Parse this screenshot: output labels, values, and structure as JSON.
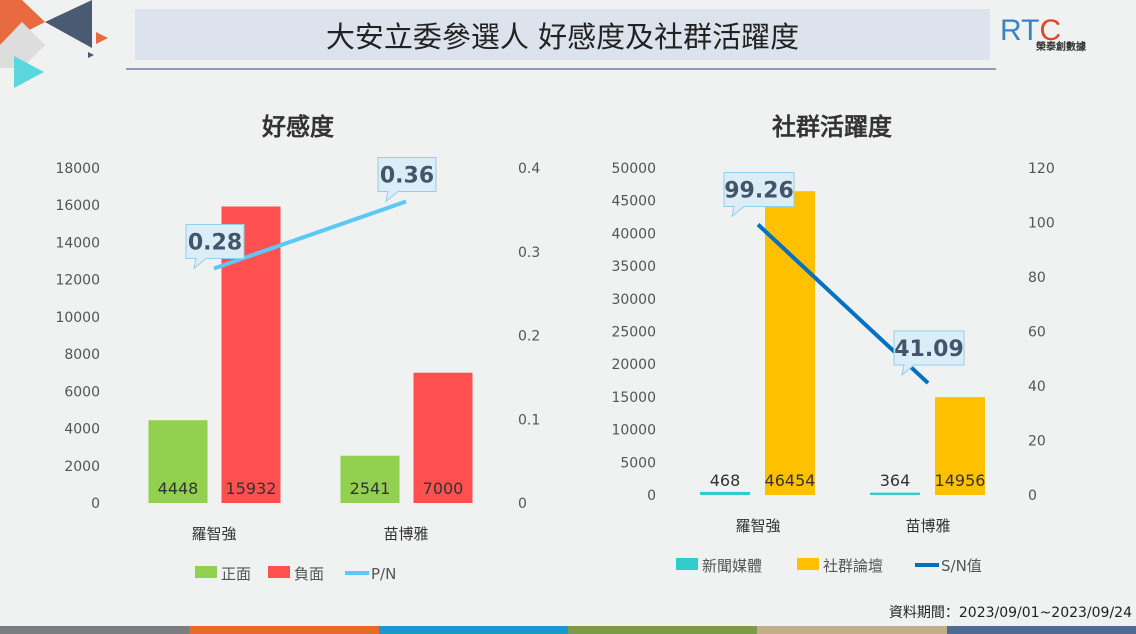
{
  "header": {
    "title": "大安立委參選人  好感度及社群活躍度",
    "logo_text": "RTC",
    "logo_sub": "榮泰創數據"
  },
  "footer": {
    "period": "資料期間：2023/09/01~2023/09/24"
  },
  "colors": {
    "bottom_bar": [
      "#7b7e80",
      "#e86a2a",
      "#1b97cf",
      "#7c9a48",
      "#c3ae8c",
      "#4e6b95"
    ]
  },
  "chart_data": [
    {
      "type": "bar",
      "title": "好感度",
      "categories": [
        "羅智強",
        "苗博雅"
      ],
      "series": [
        {
          "name": "正面",
          "type": "bar",
          "color": "#92d050",
          "values": [
            4448,
            2541
          ]
        },
        {
          "name": "負面",
          "type": "bar",
          "color": "#ff5050",
          "values": [
            15932,
            7000
          ]
        },
        {
          "name": "P/N",
          "type": "line",
          "axis": "right",
          "color": "#5bc8f5",
          "values": [
            0.28,
            0.36
          ]
        }
      ],
      "ylim": [
        0,
        18000
      ],
      "yticks": [
        0,
        2000,
        4000,
        6000,
        8000,
        10000,
        12000,
        14000,
        16000,
        18000
      ],
      "y2lim": [
        0,
        0.4
      ],
      "y2ticks": [
        0,
        0.1,
        0.2,
        0.3,
        0.4
      ],
      "legend": "bottom"
    },
    {
      "type": "bar",
      "title": "社群活躍度",
      "categories": [
        "羅智強",
        "苗博雅"
      ],
      "series": [
        {
          "name": "新聞媒體",
          "type": "bar",
          "color": "#33cccc",
          "values": [
            468,
            364
          ]
        },
        {
          "name": "社群論壇",
          "type": "bar",
          "color": "#ffc000",
          "values": [
            46454,
            14956
          ]
        },
        {
          "name": "S/N值",
          "type": "line",
          "axis": "right",
          "color": "#0070c0",
          "values": [
            99.26,
            41.09
          ]
        }
      ],
      "ylim": [
        0,
        50000
      ],
      "yticks": [
        0,
        5000,
        10000,
        15000,
        20000,
        25000,
        30000,
        35000,
        40000,
        45000,
        50000
      ],
      "y2lim": [
        0,
        120
      ],
      "y2ticks": [
        0,
        20,
        40,
        60,
        80,
        100,
        120
      ],
      "legend": "bottom"
    }
  ]
}
